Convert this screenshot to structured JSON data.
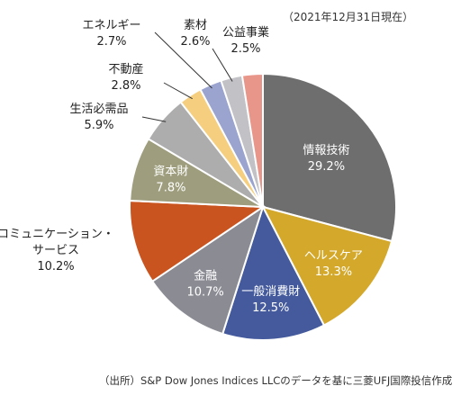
{
  "date_note": "（2021年12月31日現在）",
  "source_note": "（出所）S&P Dow Jones Indices LLCのデータを基に三菱UFJ国際投信作成",
  "chart_data": {
    "type": "pie",
    "unit": "%",
    "start_angle_deg": 0,
    "direction": "clockwise",
    "slices": [
      {
        "name": "情報技術",
        "value_label": "29.2%",
        "value": 29.2,
        "color": "#6e6e6e",
        "label_position": "inside",
        "label_color": "#ffffff"
      },
      {
        "name": "ヘルスケア",
        "value_label": "13.3%",
        "value": 13.3,
        "color": "#d4a82b",
        "label_position": "inside",
        "label_color": "#ffffff"
      },
      {
        "name": "一般消費財",
        "value_label": "12.5%",
        "value": 12.5,
        "color": "#445a9d",
        "label_position": "inside",
        "label_color": "#ffffff"
      },
      {
        "name": "金融",
        "value_label": "10.7%",
        "value": 10.7,
        "color": "#8b8b94",
        "label_position": "inside",
        "label_color": "#ffffff"
      },
      {
        "name": "コミュニケーション・\nサービス",
        "value_label": "10.2%",
        "value": 10.2,
        "color": "#c9541f",
        "label_position": "outside",
        "label_color": "#222222"
      },
      {
        "name": "資本財",
        "value_label": "7.8%",
        "value": 7.8,
        "color": "#9e9e7e",
        "label_position": "inside",
        "label_color": "#ffffff"
      },
      {
        "name": "生活必需品",
        "value_label": "5.9%",
        "value": 5.9,
        "color": "#adadad",
        "label_position": "outside",
        "label_color": "#222222"
      },
      {
        "name": "不動産",
        "value_label": "2.8%",
        "value": 2.8,
        "color": "#f5cf7f",
        "label_position": "outside",
        "label_color": "#222222"
      },
      {
        "name": "エネルギー",
        "value_label": "2.7%",
        "value": 2.7,
        "color": "#9aa4cf",
        "label_position": "outside",
        "label_color": "#222222"
      },
      {
        "name": "素材",
        "value_label": "2.6%",
        "value": 2.6,
        "color": "#c2c2c6",
        "label_position": "outside",
        "label_color": "#222222"
      },
      {
        "name": "公益事業",
        "value_label": "2.5%",
        "value": 2.5,
        "color": "#e8958a",
        "label_position": "outside",
        "label_color": "#222222"
      }
    ]
  }
}
